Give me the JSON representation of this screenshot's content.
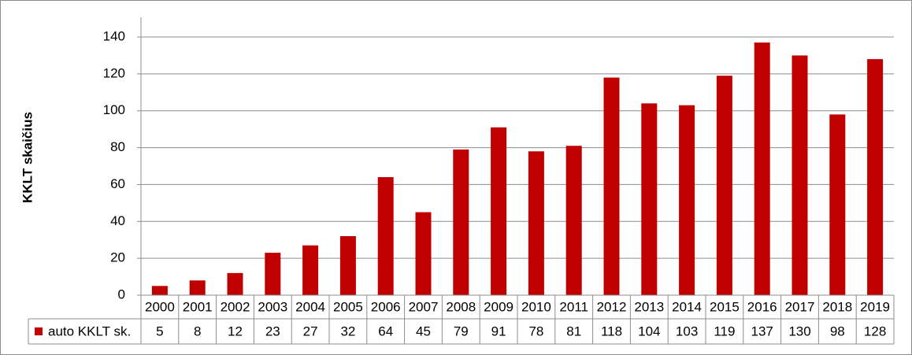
{
  "chart_data": {
    "type": "bar",
    "ylabel": "KKLT skaičius",
    "ylim": [
      0,
      140
    ],
    "yticks": [
      0,
      20,
      40,
      60,
      80,
      100,
      120,
      140
    ],
    "grid": true,
    "legend": "data-table",
    "categories": [
      "2000",
      "2001",
      "2002",
      "2003",
      "2004",
      "2005",
      "2006",
      "2007",
      "2008",
      "2009",
      "2010",
      "2011",
      "2012",
      "2013",
      "2014",
      "2015",
      "2016",
      "2017",
      "2018",
      "2019"
    ],
    "series": [
      {
        "name": "auto KKLT sk.",
        "color": "#c00000",
        "values": [
          5,
          8,
          12,
          23,
          27,
          32,
          64,
          45,
          79,
          91,
          78,
          81,
          118,
          104,
          103,
          119,
          137,
          130,
          98,
          128
        ]
      }
    ]
  }
}
